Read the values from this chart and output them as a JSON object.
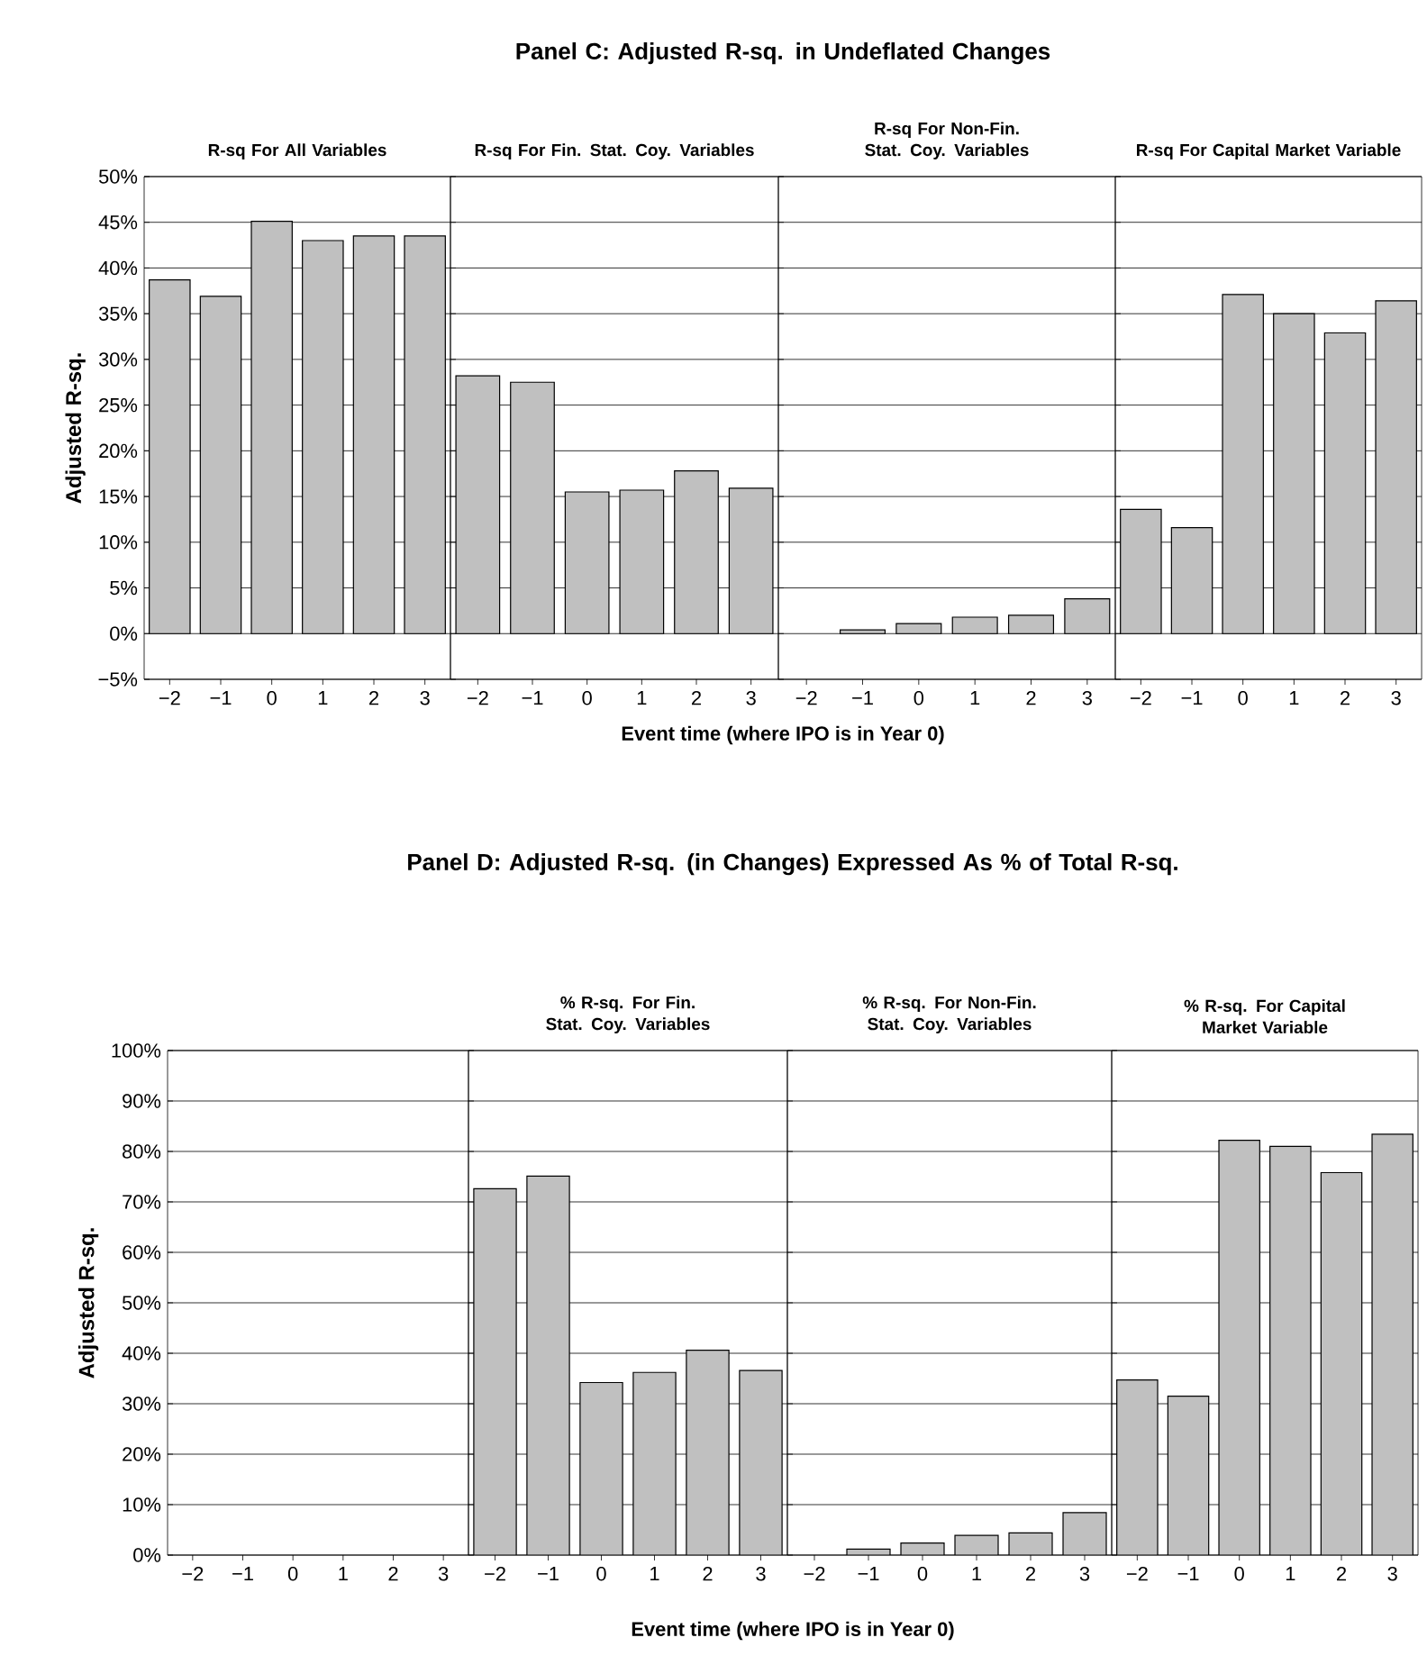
{
  "chart_data": [
    {
      "type": "other",
      "title": "Panel C:  Adjusted R-sq. in Undeflated Changes",
      "xlabel": "Event time (where IPO is in Year 0)"
    },
    {
      "type": "bar",
      "subtitle": "R-sq For All Variables",
      "ylabel": "Adjusted R-sq.",
      "categories": [
        "−2",
        "−1",
        "0",
        "1",
        "2",
        "3"
      ],
      "values": [
        38.7,
        36.9,
        45.1,
        43.0,
        43.5,
        43.5
      ],
      "color": "#c0c0c0",
      "ylim": [
        -5,
        50
      ],
      "yticks": [
        {
          "value": -5,
          "label": "−5%"
        },
        {
          "value": 0,
          "label": "0%"
        },
        {
          "value": 5,
          "label": "5%"
        },
        {
          "value": 10,
          "label": "10%"
        },
        {
          "value": 15,
          "label": "15%"
        },
        {
          "value": 20,
          "label": "20%"
        },
        {
          "value": 25,
          "label": "25%"
        },
        {
          "value": 30,
          "label": "30%"
        },
        {
          "value": 35,
          "label": "35%"
        },
        {
          "value": 40,
          "label": "40%"
        },
        {
          "value": 45,
          "label": "45%"
        },
        {
          "value": 50,
          "label": "50%"
        }
      ],
      "grid": "y"
    },
    {
      "type": "bar",
      "subtitle": "R-sq For Fin. Stat. Coy. Variables",
      "categories": [
        "−2",
        "−1",
        "0",
        "1",
        "2",
        "3"
      ],
      "values": [
        28.2,
        27.5,
        15.5,
        15.7,
        17.8,
        15.9
      ],
      "color": "#c0c0c0",
      "ylim": [
        -5,
        50
      ],
      "yticks": [
        -5,
        0,
        5,
        10,
        15,
        20,
        25,
        30,
        35,
        40,
        45,
        50
      ],
      "grid": "y",
      "tick_labels": "x"
    },
    {
      "type": "bar",
      "subtitle": "R-sq For Non-Fin. Stat. Coy. Variables",
      "categories": [
        "−2",
        "−1",
        "0",
        "1",
        "2",
        "3"
      ],
      "values": [
        null,
        0.4,
        1.1,
        1.8,
        2.0,
        3.8
      ],
      "color": "#c0c0c0",
      "ylim": [
        -5,
        50
      ],
      "yticks": [
        -5,
        0,
        5,
        10,
        15,
        20,
        25,
        30,
        35,
        40,
        45,
        50
      ],
      "grid": "y",
      "tick_labels": "x"
    },
    {
      "type": "bar",
      "subtitle": "R-sq For Capital Market Variable",
      "categories": [
        "−2",
        "−1",
        "0",
        "1",
        "2",
        "3"
      ],
      "values": [
        13.6,
        11.6,
        37.1,
        35.0,
        32.9,
        36.4
      ],
      "color": "#c0c0c0",
      "ylim": [
        -5,
        50
      ],
      "yticks": [
        -5,
        0,
        5,
        10,
        15,
        20,
        25,
        30,
        35,
        40,
        45,
        50
      ],
      "grid": "y",
      "tick_labels": "x"
    },
    {
      "type": "other",
      "title": "Panel D:  Adjusted R-sq. (in Changes) Expressed As % of Total R-sq.",
      "xlabel": "Event time (where IPO is in Year 0)"
    },
    {
      "type": "bar",
      "ylabel": "Adjusted R-sq.",
      "categories": [
        "−2",
        "−1",
        "0",
        "1",
        "2",
        "3"
      ],
      "values": [
        null,
        null,
        null,
        null,
        null,
        null
      ],
      "color": "#c0c0c0",
      "ylim": [
        0,
        100
      ],
      "yticks": [
        {
          "value": 0,
          "label": "0%"
        },
        {
          "value": 10,
          "label": "10%"
        },
        {
          "value": 20,
          "label": "20%"
        },
        {
          "value": 30,
          "label": "30%"
        },
        {
          "value": 40,
          "label": "40%"
        },
        {
          "value": 50,
          "label": "50%"
        },
        {
          "value": 60,
          "label": "60%"
        },
        {
          "value": 70,
          "label": "70%"
        },
        {
          "value": 80,
          "label": "80%"
        },
        {
          "value": 90,
          "label": "90%"
        },
        {
          "value": 100,
          "label": "100%"
        }
      ],
      "grid": "y"
    },
    {
      "type": "bar",
      "subtitle": "% R-sq. For Fin. Stat. Coy. Variables",
      "categories": [
        "−2",
        "−1",
        "0",
        "1",
        "2",
        "3"
      ],
      "values": [
        72.6,
        75.1,
        34.2,
        36.2,
        40.6,
        36.6
      ],
      "color": "#c0c0c0",
      "ylim": [
        0,
        100
      ],
      "yticks": [
        0,
        10,
        20,
        30,
        40,
        50,
        60,
        70,
        80,
        90,
        100
      ],
      "grid": "y",
      "tick_labels": "x"
    },
    {
      "type": "bar",
      "subtitle": "% R-sq. For Non-Fin. Stat. Coy. Variables",
      "categories": [
        "−2",
        "−1",
        "0",
        "1",
        "2",
        "3"
      ],
      "values": [
        null,
        1.2,
        2.4,
        3.9,
        4.4,
        8.4
      ],
      "color": "#c0c0c0",
      "ylim": [
        0,
        100
      ],
      "yticks": [
        0,
        10,
        20,
        30,
        40,
        50,
        60,
        70,
        80,
        90,
        100
      ],
      "grid": "y",
      "tick_labels": "x"
    },
    {
      "type": "bar",
      "subtitle": "% R-sq. For Capital Market Variable",
      "categories": [
        "−2",
        "−1",
        "0",
        "1",
        "2",
        "3"
      ],
      "values": [
        34.7,
        31.5,
        82.2,
        81.0,
        75.8,
        83.4
      ],
      "color": "#c0c0c0",
      "ylim": [
        0,
        100
      ],
      "yticks": [
        0,
        10,
        20,
        30,
        40,
        50,
        60,
        70,
        80,
        90,
        100
      ],
      "grid": "y",
      "tick_labels": "x"
    }
  ]
}
